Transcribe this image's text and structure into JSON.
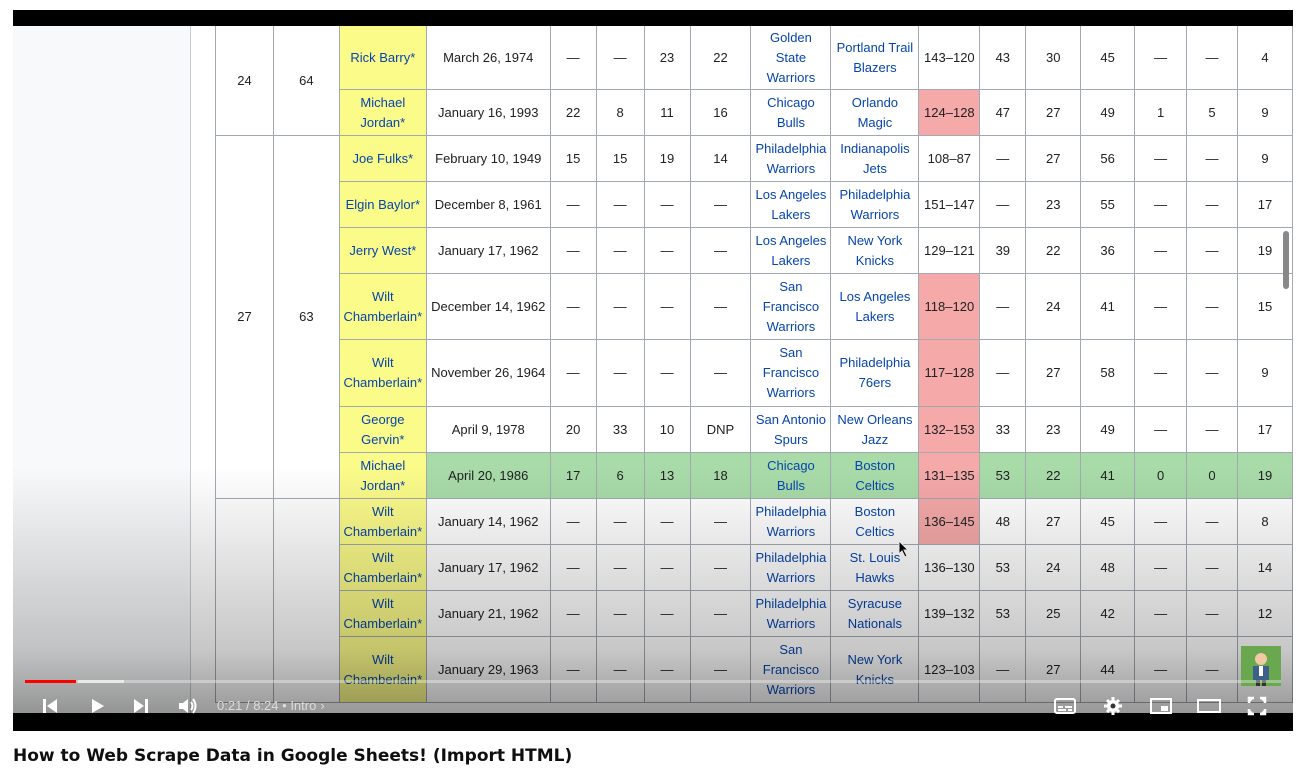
{
  "video": {
    "title": "How to Web Scrape Data in Google Sheets! (Import HTML)",
    "time_current": "0:21",
    "time_separator": "/",
    "time_total": "8:24",
    "chapter_separator": "•",
    "chapter": "Intro",
    "progress_fraction": 0.041
  },
  "colors": {
    "player_cell": "#fbfb8a",
    "loss_cell": "#f5a9a9",
    "highlight_row": "#a9dba9",
    "link": "#0645ad",
    "progress_played": "#ff0000"
  },
  "table": {
    "rows": [
      {
        "player": "Rick Barry*",
        "date": "March 26, 1974",
        "q1": "—",
        "q2": "—",
        "q3": "23",
        "q4": "22",
        "team": "Golden State Warriors",
        "opp": "Portland Trail Blazers",
        "score": "143–120",
        "fga": "43",
        "fgm": "30",
        "pct": "45",
        "a": "—",
        "b": "—",
        "c": "4"
      },
      {
        "player": "Michael Jordan*",
        "date": "January 16, 1993",
        "q1": "22",
        "q2": "8",
        "q3": "11",
        "q4": "16",
        "team": "Chicago Bulls",
        "opp": "Orlando Magic",
        "score": "124–128",
        "fga": "47",
        "fgm": "27",
        "pct": "49",
        "a": "1",
        "b": "5",
        "c": "9"
      },
      {
        "player": "Joe Fulks*",
        "date": "February 10, 1949",
        "q1": "15",
        "q2": "15",
        "q3": "19",
        "q4": "14",
        "team": "Philadelphia Warriors",
        "opp": "Indianapolis Jets",
        "score": "108–87",
        "fga": "—",
        "fgm": "27",
        "pct": "56",
        "a": "—",
        "b": "—",
        "c": "9"
      },
      {
        "player": "Elgin Baylor*",
        "date": "December 8, 1961",
        "q1": "—",
        "q2": "—",
        "q3": "—",
        "q4": "—",
        "team": "Los Angeles Lakers",
        "opp": "Philadelphia Warriors",
        "score": "151–147",
        "fga": "—",
        "fgm": "23",
        "pct": "55",
        "a": "—",
        "b": "—",
        "c": "17"
      },
      {
        "player": "Jerry West*",
        "date": "January 17, 1962",
        "q1": "—",
        "q2": "—",
        "q3": "—",
        "q4": "—",
        "team": "Los Angeles Lakers",
        "opp": "New York Knicks",
        "score": "129–121",
        "fga": "39",
        "fgm": "22",
        "pct": "36",
        "a": "—",
        "b": "—",
        "c": "19"
      },
      {
        "player": "Wilt Chamberlain*",
        "date": "December 14, 1962",
        "q1": "—",
        "q2": "—",
        "q3": "—",
        "q4": "—",
        "team": "San Francisco Warriors",
        "opp": "Los Angeles Lakers",
        "score": "118–120",
        "fga": "—",
        "fgm": "24",
        "pct": "41",
        "a": "—",
        "b": "—",
        "c": "15"
      },
      {
        "player": "Wilt Chamberlain*",
        "date": "November 26, 1964",
        "q1": "—",
        "q2": "—",
        "q3": "—",
        "q4": "—",
        "team": "San Francisco Warriors",
        "opp": "Philadelphia 76ers",
        "score": "117–128",
        "fga": "—",
        "fgm": "27",
        "pct": "58",
        "a": "—",
        "b": "—",
        "c": "9"
      },
      {
        "player": "George Gervin*",
        "date": "April 9, 1978",
        "q1": "20",
        "q2": "33",
        "q3": "10",
        "q4": "DNP",
        "team": "San Antonio Spurs",
        "opp": "New Orleans Jazz",
        "score": "132–153",
        "fga": "33",
        "fgm": "23",
        "pct": "49",
        "a": "—",
        "b": "—",
        "c": "17"
      },
      {
        "player": "Michael Jordan*",
        "date": "April 20, 1986",
        "q1": "17",
        "q2": "6",
        "q3": "13",
        "q4": "18",
        "team": "Chicago Bulls",
        "opp": "Boston Celtics",
        "score": "131–135",
        "fga": "53",
        "fgm": "22",
        "pct": "41",
        "a": "0",
        "b": "0",
        "c": "19"
      },
      {
        "player": "Wilt Chamberlain*",
        "date": "January 14, 1962",
        "q1": "—",
        "q2": "—",
        "q3": "—",
        "q4": "—",
        "team": "Philadelphia Warriors",
        "opp": "Boston Celtics",
        "score": "136–145",
        "fga": "48",
        "fgm": "27",
        "pct": "45",
        "a": "—",
        "b": "—",
        "c": "8"
      },
      {
        "player": "Wilt Chamberlain*",
        "date": "January 17, 1962",
        "q1": "—",
        "q2": "—",
        "q3": "—",
        "q4": "—",
        "team": "Philadelphia Warriors",
        "opp": "St. Louis Hawks",
        "score": "136–130",
        "fga": "53",
        "fgm": "24",
        "pct": "48",
        "a": "—",
        "b": "—",
        "c": "14"
      },
      {
        "player": "Wilt Chamberlain*",
        "date": "January 21, 1962",
        "q1": "—",
        "q2": "—",
        "q3": "—",
        "q4": "—",
        "team": "Philadelphia Warriors",
        "opp": "Syracuse Nationals",
        "score": "139–132",
        "fga": "53",
        "fgm": "25",
        "pct": "42",
        "a": "—",
        "b": "—",
        "c": "12"
      },
      {
        "player": "Wilt Chamberlain*",
        "date": "January 29, 1963",
        "q1": "—",
        "q2": "—",
        "q3": "—",
        "q4": "—",
        "team": "San Francisco Warriors",
        "opp": "New York Knicks",
        "score": "123–103",
        "fga": "—",
        "fgm": "27",
        "pct": "44",
        "a": "—",
        "b": "—",
        "c": "8"
      }
    ],
    "group_a": {
      "rank": "24",
      "points": "64"
    },
    "group_b": {
      "rank": "27",
      "points": "63"
    }
  },
  "controls": {
    "prev_icon": "previous-icon",
    "play_icon": "play-icon",
    "next_icon": "next-icon",
    "volume_icon": "volume-icon",
    "subtitles_icon": "subtitles-icon",
    "settings_icon": "settings-icon",
    "miniplayer_icon": "miniplayer-icon",
    "theater_icon": "theater-icon",
    "fullscreen_icon": "fullscreen-icon"
  }
}
